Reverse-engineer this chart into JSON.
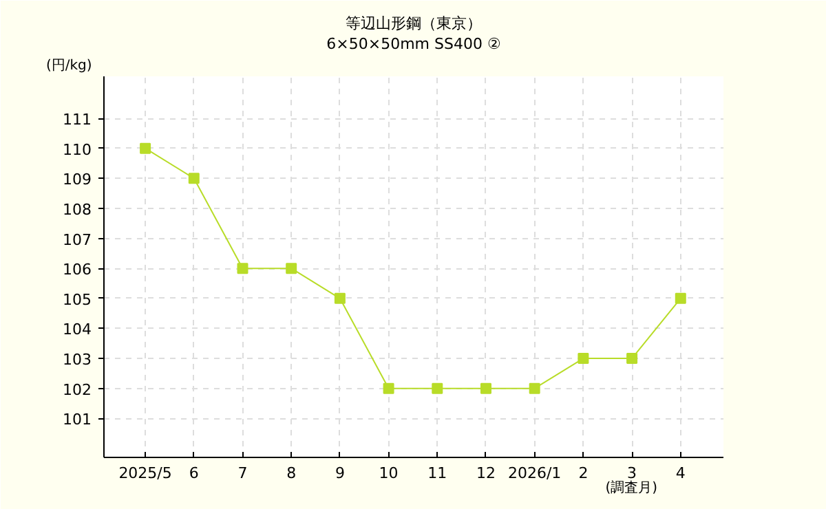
{
  "chart_data": {
    "type": "line",
    "title": "等辺山形鋼（東京）",
    "subtitle": "6×50×50mm SS400 ②",
    "xlabel": "(調査月)",
    "ylabel": "(円/kg)",
    "categories": [
      "2025/5",
      "6",
      "7",
      "8",
      "9",
      "10",
      "11",
      "12",
      "2026/1",
      "2",
      "3",
      "4"
    ],
    "series": [
      {
        "color": "#b8dc28",
        "values": [
          110,
          109,
          106,
          106,
          105,
          102,
          102,
          102,
          102,
          103,
          103,
          105
        ]
      }
    ],
    "ylim": [
      99.7,
      112.4
    ],
    "yticks": [
      101,
      102,
      103,
      104,
      105,
      106,
      107,
      108,
      109,
      110,
      111
    ],
    "grid": true,
    "marker": "square",
    "line_style": "solid"
  }
}
